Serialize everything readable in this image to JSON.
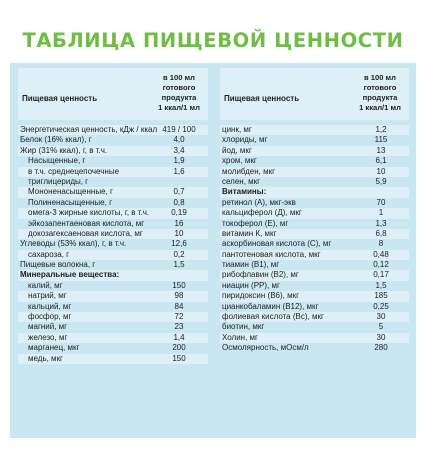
{
  "title": "ТАБЛИЦА ПИЩЕВОЙ ЦЕННОСТИ",
  "header": {
    "name": "Пищевая ценность",
    "value_lines": [
      "в 100 мл",
      "готового",
      "продукта",
      "1 ккал/1 мл"
    ]
  },
  "left": [
    {
      "name": "Энергетическая ценность, кДж / ккал",
      "value": "419 / 100"
    },
    {
      "name": "Белок (16% ккал), г",
      "value": "4,0"
    },
    {
      "name": "Жир (31% ккал), г, в т.ч.",
      "value": "3,4"
    },
    {
      "name": "Насыщенные, г",
      "value": "1,9",
      "indent": true
    },
    {
      "name": "в т.ч. среднецепочечные",
      "value": "1,6",
      "indent": true
    },
    {
      "name": "триглицериды, г",
      "value": "",
      "indent": true
    },
    {
      "name": "Мононенасыщенные, г",
      "value": "0,7",
      "indent": true
    },
    {
      "name": "Полиненасыщенные, г",
      "value": "0,8",
      "indent": true
    },
    {
      "name": "омега-3 жирные кислоты, г, в т.ч.",
      "value": "0,19",
      "indent": true
    },
    {
      "name": "эйкозапентаеновая кислота, мг",
      "value": "16",
      "indent": true
    },
    {
      "name": "докозагексаеновая кислота, мг",
      "value": "10",
      "indent": true
    },
    {
      "name": "Углеводы (53% ккал), г, в т.ч.",
      "value": "12,6"
    },
    {
      "name": "сахароза, г",
      "value": "0,2",
      "indent": true
    },
    {
      "name": "Пищевые волокна, г",
      "value": "1,5"
    },
    {
      "name": "Минеральные вещества:",
      "value": "",
      "bold": true
    },
    {
      "name": "калий, мг",
      "value": "150",
      "indent": true
    },
    {
      "name": "натрий, мг",
      "value": "98",
      "indent": true
    },
    {
      "name": "кальций, мг",
      "value": "84",
      "indent": true
    },
    {
      "name": "фосфор, мг",
      "value": "72",
      "indent": true
    },
    {
      "name": "магний, мг",
      "value": "23",
      "indent": true
    },
    {
      "name": "железо, мг",
      "value": "1,4",
      "indent": true
    },
    {
      "name": "марганец, мкг",
      "value": "200",
      "indent": true
    },
    {
      "name": "медь, мкг",
      "value": "150",
      "indent": true
    }
  ],
  "right": [
    {
      "name": "цинк, мг",
      "value": "1,2"
    },
    {
      "name": "хлориды, мг",
      "value": "115"
    },
    {
      "name": "йод, мкг",
      "value": "13"
    },
    {
      "name": "хром, мкг",
      "value": "6,1"
    },
    {
      "name": "молибден, мкг",
      "value": "10"
    },
    {
      "name": "селен, мкг",
      "value": "5,9"
    },
    {
      "name": "Витамины:",
      "value": "",
      "bold": true
    },
    {
      "name": "ретинол (А), мкг-экв",
      "value": "70"
    },
    {
      "name": "кальциферол (Д), мкг",
      "value": "1"
    },
    {
      "name": "токоферол (Е), мг",
      "value": "1,3"
    },
    {
      "name": "витамин К, мкг",
      "value": "6,8"
    },
    {
      "name": "аскорбиновая кислота (С), мг",
      "value": "8"
    },
    {
      "name": "пантотеновая кислота, мкг",
      "value": "0,48"
    },
    {
      "name": "тиамин (В1), мг",
      "value": "0,12"
    },
    {
      "name": "рибофлавин (В2), мг",
      "value": "0,17"
    },
    {
      "name": "ниацин (РР), мг",
      "value": "1,5"
    },
    {
      "name": "пиридоксин (В6), мкг",
      "value": "185"
    },
    {
      "name": "цианкобаламин (В12), мкг",
      "value": "0,25"
    },
    {
      "name": "фолиевая кислота (Вс), мкг",
      "value": "30"
    },
    {
      "name": "биотин, мкг",
      "value": "5"
    },
    {
      "name": "Холин, мг",
      "value": "30"
    },
    {
      "name": "Осмолярность, мОсм/л",
      "value": "280"
    }
  ],
  "colors": {
    "title": "#6cbf3f",
    "panel": "#c8e7f1",
    "stripe": "#ddf0f7"
  }
}
